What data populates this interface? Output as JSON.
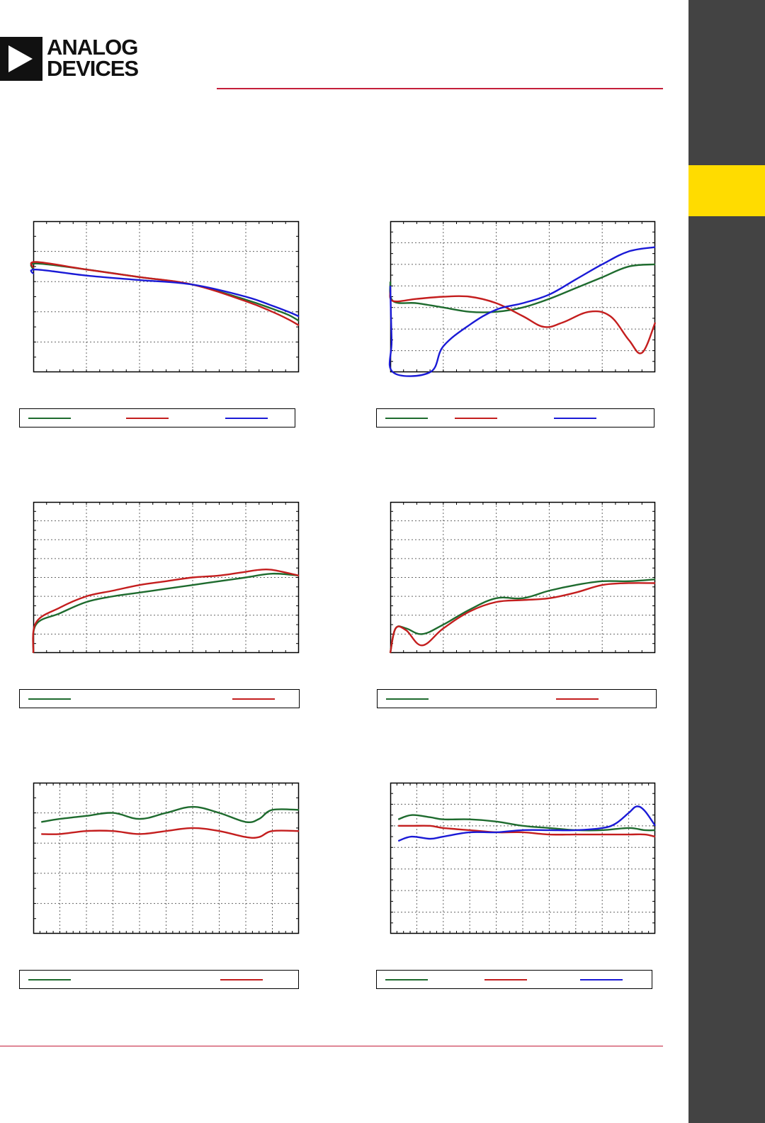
{
  "brand": {
    "name_line1": "ANALOG",
    "name_line2": "DEVICES"
  },
  "colors": {
    "green": "#1e6b2e",
    "red": "#c41e1e",
    "blue": "#1a1ad6",
    "accent_rule": "#c41e3a",
    "side_bar": "#434343",
    "side_tab": "#ffdc00"
  },
  "chart_data": [
    {
      "type": "line",
      "xlim": [
        0,
        10
      ],
      "ylim": [
        0,
        10
      ],
      "x_gridlines": 5,
      "y_gridlines": 5,
      "grid": true,
      "legend_position": "bottom",
      "series": [
        {
          "color": "green",
          "x": [
            0,
            0.1,
            2,
            4,
            6,
            8,
            9,
            9.6,
            10
          ],
          "y": [
            6.8,
            7.2,
            6.8,
            6.3,
            5.8,
            4.8,
            4.2,
            3.8,
            3.4
          ]
        },
        {
          "color": "red",
          "x": [
            0,
            0.1,
            2,
            4,
            6,
            8,
            9,
            9.6,
            10
          ],
          "y": [
            6.9,
            7.3,
            6.8,
            6.3,
            5.8,
            4.7,
            4.0,
            3.5,
            3.1
          ]
        },
        {
          "color": "blue",
          "x": [
            0,
            0.1,
            2,
            4,
            6,
            8,
            9,
            9.6,
            10
          ],
          "y": [
            6.5,
            6.8,
            6.4,
            6.1,
            5.8,
            5.0,
            4.4,
            4.0,
            3.7
          ]
        }
      ]
    },
    {
      "type": "line",
      "xlim": [
        0,
        10
      ],
      "ylim": [
        0,
        7
      ],
      "x_gridlines": 5,
      "y_gridlines": 7,
      "grid": true,
      "legend_position": "bottom",
      "series": [
        {
          "color": "green",
          "x": [
            0,
            0.1,
            1,
            2,
            3,
            4,
            5,
            6,
            7,
            8,
            9,
            10
          ],
          "y": [
            4.2,
            3.3,
            3.2,
            3.0,
            2.8,
            2.8,
            3.0,
            3.4,
            3.9,
            4.4,
            4.9,
            5.0
          ]
        },
        {
          "color": "red",
          "x": [
            0,
            0.1,
            1,
            2,
            3,
            4,
            5,
            5.8,
            6.5,
            7.5,
            8.3,
            9,
            9.5,
            10
          ],
          "y": [
            3.8,
            3.3,
            3.4,
            3.5,
            3.5,
            3.2,
            2.6,
            2.1,
            2.3,
            2.8,
            2.6,
            1.5,
            0.9,
            2.3
          ]
        },
        {
          "color": "blue",
          "x": [
            0,
            0.05,
            0.1,
            1.5,
            2,
            3,
            4,
            5,
            6,
            7,
            8,
            9,
            10
          ],
          "y": [
            4.0,
            1.5,
            0,
            0,
            1.2,
            2.2,
            2.9,
            3.2,
            3.6,
            4.3,
            5.0,
            5.6,
            5.8
          ]
        }
      ]
    },
    {
      "type": "line",
      "xlim": [
        0,
        10
      ],
      "ylim": [
        0,
        8
      ],
      "x_gridlines": 5,
      "y_gridlines": 8,
      "grid": true,
      "legend_position": "bottom",
      "series": [
        {
          "color": "green",
          "x": [
            0,
            0.1,
            1,
            2,
            3,
            4,
            5,
            6,
            7,
            8,
            9,
            10
          ],
          "y": [
            0,
            1.5,
            2.1,
            2.7,
            3.0,
            3.2,
            3.4,
            3.6,
            3.8,
            4.0,
            4.2,
            4.1
          ]
        },
        {
          "color": "red",
          "x": [
            0,
            0.1,
            1,
            2,
            3,
            4,
            5,
            6,
            7,
            8,
            8.5,
            9,
            10
          ],
          "y": [
            0,
            1.6,
            2.4,
            3.0,
            3.3,
            3.6,
            3.8,
            4.0,
            4.1,
            4.3,
            4.4,
            4.4,
            4.1
          ]
        }
      ]
    },
    {
      "type": "line",
      "xlim": [
        0,
        10
      ],
      "ylim": [
        0,
        8
      ],
      "x_gridlines": 5,
      "y_gridlines": 8,
      "grid": true,
      "legend_position": "bottom",
      "series": [
        {
          "color": "green",
          "x": [
            0,
            0.2,
            0.6,
            1.2,
            2,
            3,
            4,
            5,
            6,
            7,
            8,
            9,
            10
          ],
          "y": [
            0,
            1.3,
            1.3,
            1.0,
            1.5,
            2.3,
            2.9,
            2.9,
            3.3,
            3.6,
            3.8,
            3.8,
            3.9
          ]
        },
        {
          "color": "red",
          "x": [
            0,
            0.2,
            0.6,
            1.2,
            2,
            3,
            4,
            5,
            6,
            7,
            8,
            9,
            10
          ],
          "y": [
            0,
            1.3,
            1.2,
            0.4,
            1.3,
            2.2,
            2.7,
            2.8,
            2.9,
            3.2,
            3.6,
            3.7,
            3.7
          ]
        }
      ]
    },
    {
      "type": "line",
      "xlim": [
        0,
        10
      ],
      "ylim": [
        0,
        5
      ],
      "x_gridlines": 10,
      "y_gridlines": 5,
      "grid": true,
      "legend_position": "bottom",
      "series": [
        {
          "color": "green",
          "x": [
            0.3,
            1,
            2,
            3,
            4,
            5,
            6,
            7,
            8,
            8.5,
            9,
            10
          ],
          "y": [
            3.7,
            3.8,
            3.9,
            4.0,
            3.8,
            4.0,
            4.2,
            4.0,
            3.7,
            3.8,
            4.1,
            4.1
          ]
        },
        {
          "color": "red",
          "x": [
            0.3,
            1,
            2,
            3,
            4,
            5,
            6,
            7,
            8,
            8.5,
            9,
            10
          ],
          "y": [
            3.3,
            3.3,
            3.4,
            3.4,
            3.3,
            3.4,
            3.5,
            3.4,
            3.2,
            3.2,
            3.4,
            3.4
          ]
        }
      ]
    },
    {
      "type": "line",
      "xlim": [
        0,
        10
      ],
      "ylim": [
        0,
        7
      ],
      "x_gridlines": 10,
      "y_gridlines": 7,
      "grid": true,
      "legend_position": "bottom",
      "series": [
        {
          "color": "green",
          "x": [
            0.3,
            0.8,
            1.5,
            2,
            3,
            4,
            5,
            6,
            7,
            8,
            9,
            9.6,
            10
          ],
          "y": [
            5.3,
            5.5,
            5.4,
            5.3,
            5.3,
            5.2,
            5.0,
            4.9,
            4.8,
            4.8,
            4.9,
            4.8,
            4.8
          ]
        },
        {
          "color": "red",
          "x": [
            0.3,
            0.8,
            1.5,
            2,
            3,
            4,
            5,
            6,
            7,
            8,
            9,
            9.6,
            10
          ],
          "y": [
            5.0,
            5.0,
            5.0,
            4.9,
            4.8,
            4.7,
            4.7,
            4.6,
            4.6,
            4.6,
            4.6,
            4.6,
            4.5
          ]
        },
        {
          "color": "blue",
          "x": [
            0.3,
            0.8,
            1.5,
            2,
            3,
            4,
            5,
            6,
            7,
            8,
            8.5,
            9,
            9.3,
            9.6,
            10
          ],
          "y": [
            4.3,
            4.5,
            4.4,
            4.5,
            4.7,
            4.7,
            4.8,
            4.8,
            4.8,
            4.9,
            5.1,
            5.6,
            5.9,
            5.7,
            5.0
          ]
        }
      ]
    }
  ]
}
